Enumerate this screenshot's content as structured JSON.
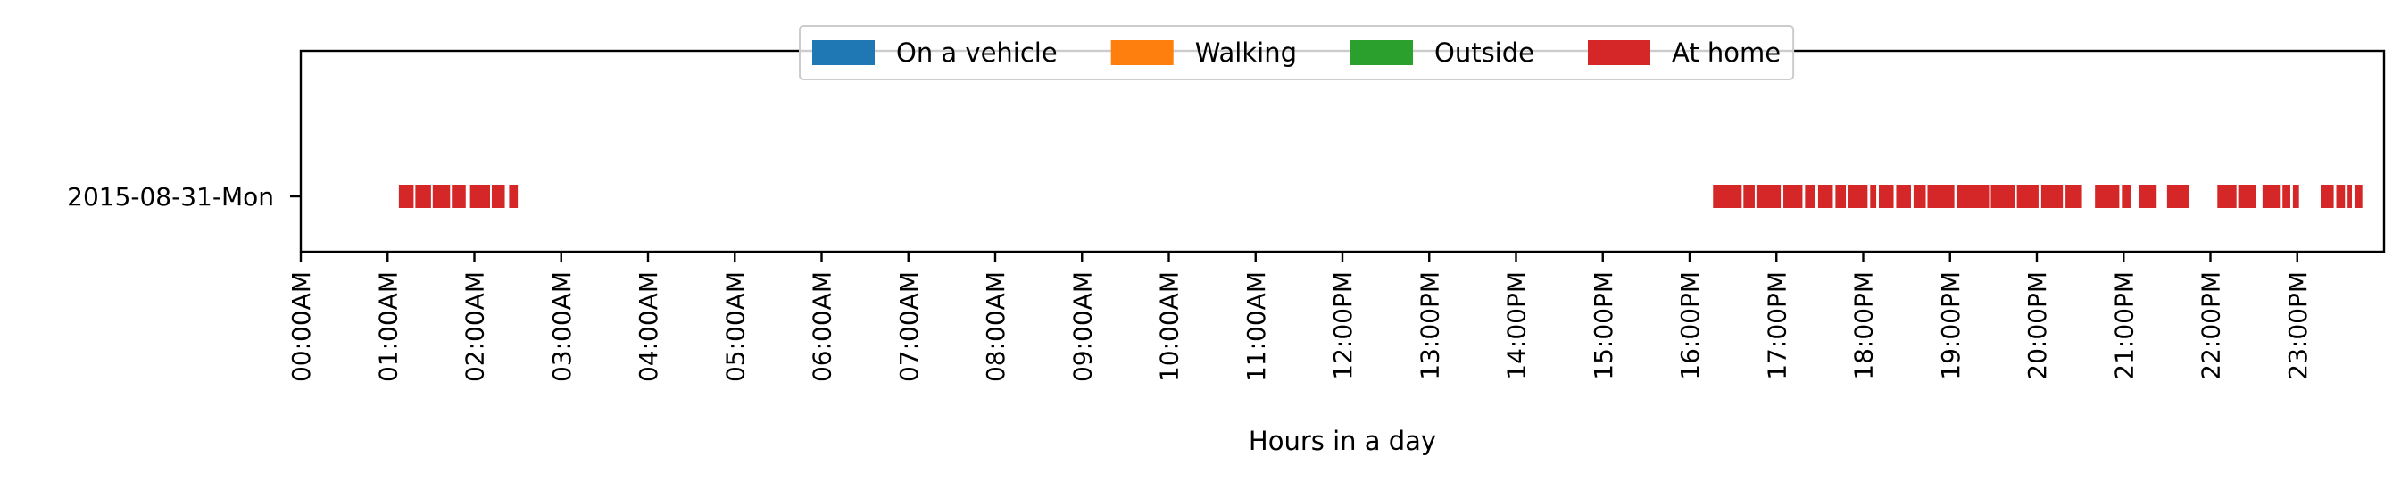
{
  "chart_data": {
    "type": "timeline",
    "xlabel": "Hours in a day",
    "ylabel": "",
    "xlim": [
      0,
      24
    ],
    "x_ticks": [
      "00:00AM",
      "01:00AM",
      "02:00AM",
      "03:00AM",
      "04:00AM",
      "05:00AM",
      "06:00AM",
      "07:00AM",
      "08:00AM",
      "09:00AM",
      "10:00AM",
      "11:00AM",
      "12:00PM",
      "13:00PM",
      "14:00PM",
      "15:00PM",
      "16:00PM",
      "17:00PM",
      "18:00PM",
      "19:00PM",
      "20:00PM",
      "21:00PM",
      "22:00PM",
      "23:00PM"
    ],
    "categories": [
      "2015-08-31-Mon"
    ],
    "legend": {
      "position": "top-center",
      "entries": [
        {
          "name": "On a vehicle",
          "color": "#1f77b4"
        },
        {
          "name": "Walking",
          "color": "#ff7f0e"
        },
        {
          "name": "Outside",
          "color": "#2ca02c"
        },
        {
          "name": "At home",
          "color": "#d62728"
        }
      ]
    },
    "series": [
      {
        "name": "At home",
        "color": "#d62728",
        "row": "2015-08-31-Mon",
        "intervals": [
          [
            1.13,
            1.3
          ],
          [
            1.32,
            1.5
          ],
          [
            1.52,
            1.72
          ],
          [
            1.74,
            1.9
          ],
          [
            1.95,
            2.18
          ],
          [
            2.2,
            2.35
          ],
          [
            2.4,
            2.5
          ],
          [
            16.27,
            16.6
          ],
          [
            16.62,
            16.75
          ],
          [
            16.77,
            17.05
          ],
          [
            17.08,
            17.3
          ],
          [
            17.33,
            17.45
          ],
          [
            17.48,
            17.65
          ],
          [
            17.68,
            17.8
          ],
          [
            17.82,
            18.05
          ],
          [
            18.08,
            18.15
          ],
          [
            18.18,
            18.35
          ],
          [
            18.38,
            18.55
          ],
          [
            18.58,
            18.72
          ],
          [
            18.74,
            19.05
          ],
          [
            19.08,
            19.45
          ],
          [
            19.47,
            19.75
          ],
          [
            19.77,
            20.02
          ],
          [
            20.05,
            20.3
          ],
          [
            20.33,
            20.52
          ],
          [
            20.67,
            20.95
          ],
          [
            20.98,
            21.08
          ],
          [
            21.18,
            21.38
          ],
          [
            21.5,
            21.75
          ],
          [
            22.08,
            22.3
          ],
          [
            22.32,
            22.52
          ],
          [
            22.6,
            22.8
          ],
          [
            22.83,
            22.92
          ],
          [
            22.95,
            23.02
          ],
          [
            23.27,
            23.42
          ],
          [
            23.45,
            23.55
          ],
          [
            23.58,
            23.63
          ],
          [
            23.66,
            23.75
          ]
        ]
      }
    ]
  }
}
